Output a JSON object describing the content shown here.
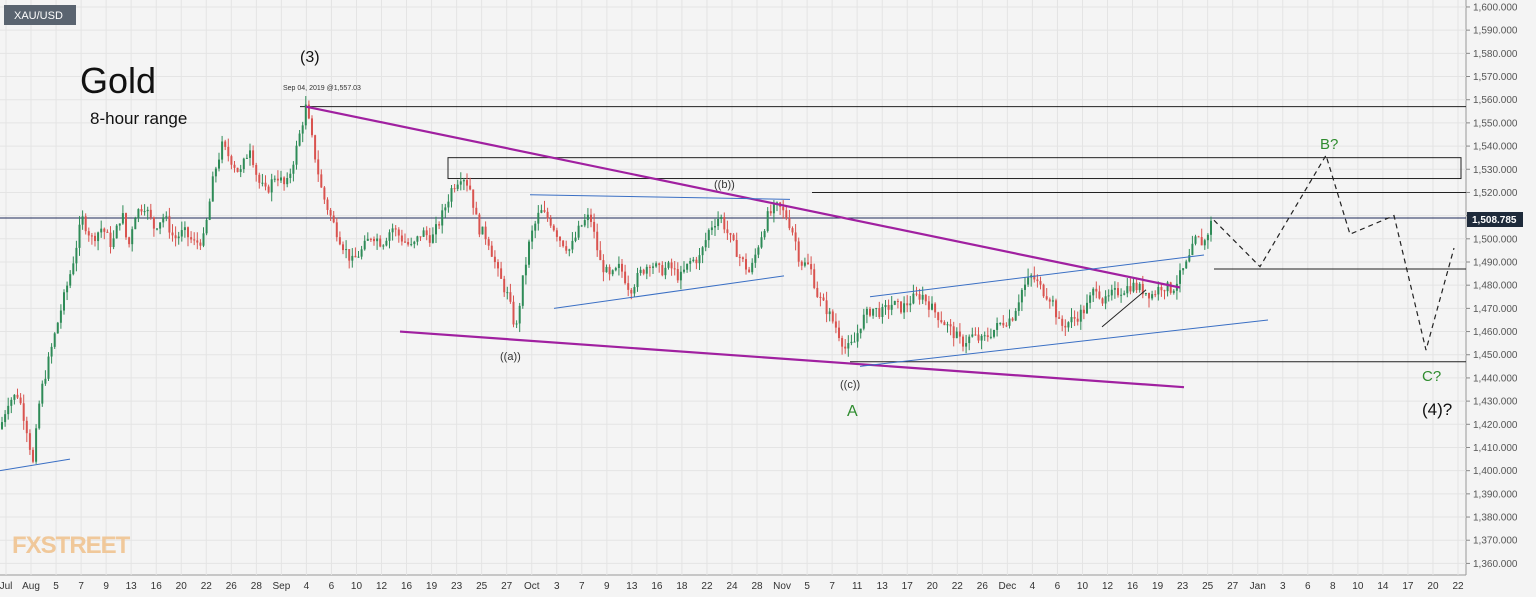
{
  "symbol": "XAU/USD",
  "title": "Gold",
  "subtitle": "8-hour range",
  "watermark": "FXSTREET",
  "price_label": "1,508.785",
  "annotation_small": "Sep 04, 2019 @1,557.03",
  "wave_labels": {
    "w3": "(3)",
    "wa_sub": "((a))",
    "wb_sub": "((b))",
    "wc_sub": "((c))",
    "A": "A",
    "B": "B?",
    "C": "C?",
    "w4": "(4)?"
  },
  "colors": {
    "background": "#f4f4f4",
    "up_candle": "#2e8b57",
    "down_candle": "#d9534f",
    "trendline_purple": "#a020a0",
    "channel_blue": "#3a6fc4",
    "wave_green": "#2e8b2e",
    "price_tag": "#1e2a3a"
  },
  "chart_data": {
    "type": "candlestick",
    "ylim": [
      1355,
      1603
    ],
    "y_ticks": [
      "1,360.000",
      "1,370.000",
      "1,380.000",
      "1,390.000",
      "1,400.000",
      "1,410.000",
      "1,420.000",
      "1,430.000",
      "1,440.000",
      "1,450.000",
      "1,460.000",
      "1,470.000",
      "1,480.000",
      "1,490.000",
      "1,500.000",
      "1,510.000",
      "1,520.000",
      "1,530.000",
      "1,540.000",
      "1,550.000",
      "1,560.000",
      "1,570.000",
      "1,580.000",
      "1,590.000",
      "1,600.000"
    ],
    "x_ticks": [
      "Jul",
      "Aug",
      "5",
      "7",
      "9",
      "13",
      "16",
      "20",
      "22",
      "26",
      "28",
      "Sep",
      "4",
      "6",
      "10",
      "12",
      "16",
      "19",
      "23",
      "25",
      "27",
      "Oct",
      "3",
      "7",
      "9",
      "13",
      "16",
      "18",
      "22",
      "24",
      "28",
      "Nov",
      "5",
      "7",
      "11",
      "13",
      "17",
      "20",
      "22",
      "26",
      "Dec",
      "4",
      "6",
      "10",
      "12",
      "16",
      "19",
      "23",
      "25",
      "27",
      "Jan",
      "3",
      "6",
      "8",
      "10",
      "14",
      "17",
      "20",
      "22"
    ],
    "price_path": [
      [
        0,
        1418
      ],
      [
        8,
        1430
      ],
      [
        18,
        1433
      ],
      [
        26,
        1420
      ],
      [
        33,
        1403
      ],
      [
        40,
        1432
      ],
      [
        50,
        1450
      ],
      [
        60,
        1468
      ],
      [
        72,
        1488
      ],
      [
        82,
        1509
      ],
      [
        92,
        1500
      ],
      [
        102,
        1505
      ],
      [
        112,
        1497
      ],
      [
        122,
        1512
      ],
      [
        128,
        1495
      ],
      [
        134,
        1510
      ],
      [
        144,
        1515
      ],
      [
        154,
        1505
      ],
      [
        164,
        1510
      ],
      [
        174,
        1500
      ],
      [
        184,
        1503
      ],
      [
        194,
        1498
      ],
      [
        204,
        1500
      ],
      [
        214,
        1528
      ],
      [
        222,
        1540
      ],
      [
        230,
        1535
      ],
      [
        240,
        1528
      ],
      [
        250,
        1540
      ],
      [
        258,
        1525
      ],
      [
        266,
        1520
      ],
      [
        276,
        1528
      ],
      [
        286,
        1522
      ],
      [
        296,
        1538
      ],
      [
        306,
        1557
      ],
      [
        314,
        1538
      ],
      [
        322,
        1520
      ],
      [
        332,
        1508
      ],
      [
        342,
        1498
      ],
      [
        352,
        1490
      ],
      [
        362,
        1495
      ],
      [
        372,
        1502
      ],
      [
        382,
        1498
      ],
      [
        392,
        1505
      ],
      [
        402,
        1500
      ],
      [
        412,
        1496
      ],
      [
        422,
        1503
      ],
      [
        432,
        1500
      ],
      [
        442,
        1510
      ],
      [
        452,
        1522
      ],
      [
        462,
        1528
      ],
      [
        470,
        1522
      ],
      [
        478,
        1505
      ],
      [
        488,
        1500
      ],
      [
        498,
        1485
      ],
      [
        508,
        1475
      ],
      [
        516,
        1460
      ],
      [
        522,
        1480
      ],
      [
        530,
        1500
      ],
      [
        540,
        1512
      ],
      [
        550,
        1508
      ],
      [
        560,
        1500
      ],
      [
        570,
        1495
      ],
      [
        580,
        1505
      ],
      [
        590,
        1510
      ],
      [
        600,
        1490
      ],
      [
        610,
        1483
      ],
      [
        620,
        1488
      ],
      [
        630,
        1478
      ],
      [
        640,
        1485
      ],
      [
        650,
        1490
      ],
      [
        660,
        1486
      ],
      [
        670,
        1488
      ],
      [
        680,
        1483
      ],
      [
        690,
        1490
      ],
      [
        700,
        1492
      ],
      [
        710,
        1505
      ],
      [
        720,
        1510
      ],
      [
        730,
        1500
      ],
      [
        740,
        1492
      ],
      [
        750,
        1485
      ],
      [
        760,
        1500
      ],
      [
        768,
        1510
      ],
      [
        778,
        1514
      ],
      [
        786,
        1510
      ],
      [
        794,
        1502
      ],
      [
        800,
        1490
      ],
      [
        810,
        1488
      ],
      [
        818,
        1475
      ],
      [
        826,
        1470
      ],
      [
        836,
        1462
      ],
      [
        846,
        1452
      ],
      [
        854,
        1455
      ],
      [
        862,
        1465
      ],
      [
        872,
        1470
      ],
      [
        882,
        1468
      ],
      [
        892,
        1472
      ],
      [
        902,
        1470
      ],
      [
        912,
        1474
      ],
      [
        922,
        1476
      ],
      [
        932,
        1470
      ],
      [
        942,
        1465
      ],
      [
        952,
        1460
      ],
      [
        962,
        1455
      ],
      [
        972,
        1458
      ],
      [
        982,
        1456
      ],
      [
        992,
        1460
      ],
      [
        1002,
        1464
      ],
      [
        1012,
        1466
      ],
      [
        1022,
        1478
      ],
      [
        1032,
        1484
      ],
      [
        1042,
        1478
      ],
      [
        1052,
        1474
      ],
      [
        1060,
        1462
      ],
      [
        1068,
        1464
      ],
      [
        1076,
        1466
      ],
      [
        1086,
        1470
      ],
      [
        1096,
        1480
      ],
      [
        1104,
        1472
      ],
      [
        1112,
        1476
      ],
      [
        1122,
        1478
      ],
      [
        1132,
        1480
      ],
      [
        1142,
        1478
      ],
      [
        1152,
        1476
      ],
      [
        1162,
        1480
      ],
      [
        1172,
        1478
      ],
      [
        1180,
        1484
      ],
      [
        1188,
        1490
      ],
      [
        1196,
        1500
      ],
      [
        1204,
        1498
      ],
      [
        1212,
        1508
      ]
    ],
    "projection": [
      [
        1214,
        1508
      ],
      [
        1260,
        1488
      ],
      [
        1326,
        1536
      ],
      [
        1350,
        1502
      ],
      [
        1394,
        1510
      ],
      [
        1426,
        1452
      ],
      [
        1454,
        1496
      ]
    ],
    "levels": [
      {
        "name": "resistance-top",
        "y": 1557,
        "x0": 300,
        "x1": 1466
      },
      {
        "name": "resistance-mid",
        "y": 1520,
        "x0": 812,
        "x1": 1466
      },
      {
        "name": "current",
        "y": 1509,
        "x0": 0,
        "x1": 1466
      },
      {
        "name": "pivot",
        "y": 1487,
        "x0": 1214,
        "x1": 1466
      },
      {
        "name": "support",
        "y": 1447,
        "x0": 850,
        "x1": 1466
      }
    ],
    "zone": {
      "y0": 1526,
      "y1": 1535,
      "x0": 448,
      "x1": 1461
    },
    "trendlines_purple": [
      [
        [
          306,
          1557
        ],
        [
          1180,
          1479
        ]
      ],
      [
        [
          400,
          1460
        ],
        [
          1184,
          1436
        ]
      ]
    ],
    "trendlines_blue": [
      [
        [
          0,
          1400
        ],
        [
          70,
          1405
        ]
      ],
      [
        [
          530,
          1519
        ],
        [
          790,
          1517
        ]
      ],
      [
        [
          554,
          1470
        ],
        [
          784,
          1484
        ]
      ],
      [
        [
          870,
          1475
        ],
        [
          1204,
          1493
        ]
      ],
      [
        [
          860,
          1445
        ],
        [
          1268,
          1465
        ]
      ],
      [
        [
          1102,
          1462
        ],
        [
          1146,
          1478
        ]
      ]
    ]
  }
}
